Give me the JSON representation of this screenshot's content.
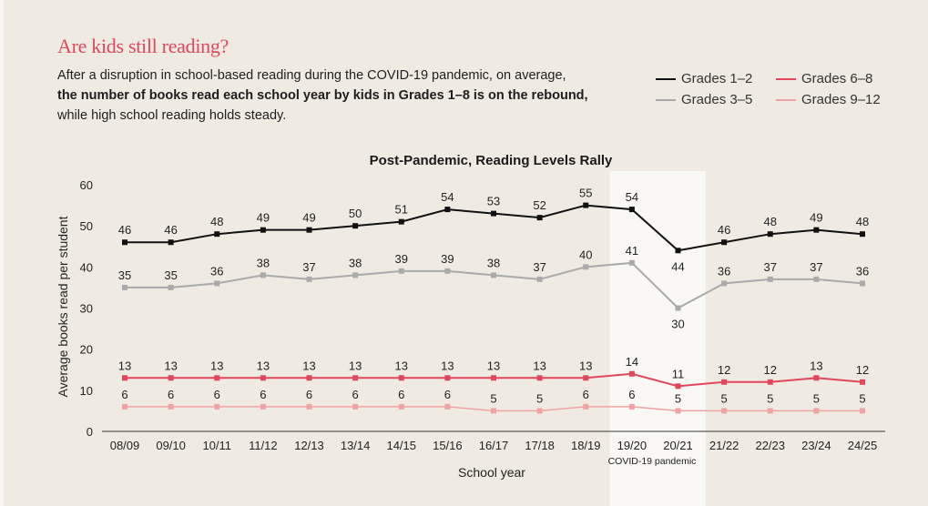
{
  "header": {
    "title": "Are kids still reading?",
    "desc_1": "After a disruption in school-based reading during the COVID-19 pandemic, on average,",
    "desc_bold": "the number of books read each school year by kids in Grades 1–8 is on the rebound,",
    "desc_2": "while high school reading holds steady."
  },
  "legend": {
    "items": [
      {
        "label": "Grades 1–2",
        "color": "#111111"
      },
      {
        "label": "Grades 3–5",
        "color": "#aaaaaa"
      },
      {
        "label": "Grades 6–8",
        "color": "#e0475c"
      },
      {
        "label": "Grades 9–12",
        "color": "#f0a3a3"
      }
    ]
  },
  "chart_data": {
    "type": "line",
    "title": "Post-Pandemic, Reading Levels Rally",
    "xlabel": "School year",
    "ylabel": "Average books read per student",
    "ylim": [
      0,
      60
    ],
    "yticks": [
      0,
      10,
      20,
      30,
      40,
      50,
      60
    ],
    "grid": false,
    "legend_position": "top-right",
    "categories": [
      "08/09",
      "09/10",
      "10/11",
      "11/12",
      "12/13",
      "13/14",
      "14/15",
      "15/16",
      "16/17",
      "17/18",
      "18/19",
      "19/20",
      "20/21",
      "21/22",
      "22/23",
      "23/24",
      "24/25"
    ],
    "highlight": {
      "categories": [
        "19/20",
        "20/21"
      ],
      "label": "COVID-19 pandemic"
    },
    "series": [
      {
        "name": "Grades 1–2",
        "color": "#111111",
        "values": [
          46,
          46,
          48,
          49,
          49,
          50,
          51,
          54,
          53,
          52,
          55,
          54,
          44,
          46,
          48,
          49,
          48
        ]
      },
      {
        "name": "Grades 3–5",
        "color": "#aaaaaa",
        "values": [
          35,
          35,
          36,
          38,
          37,
          38,
          39,
          39,
          38,
          37,
          40,
          41,
          30,
          36,
          37,
          37,
          36
        ]
      },
      {
        "name": "Grades 6–8",
        "color": "#e0475c",
        "values": [
          13,
          13,
          13,
          13,
          13,
          13,
          13,
          13,
          13,
          13,
          13,
          14,
          11,
          12,
          12,
          13,
          12
        ]
      },
      {
        "name": "Grades 9–12",
        "color": "#f0a3a3",
        "values": [
          6,
          6,
          6,
          6,
          6,
          6,
          6,
          6,
          5,
          5,
          6,
          6,
          5,
          5,
          5,
          5,
          5
        ]
      }
    ]
  }
}
